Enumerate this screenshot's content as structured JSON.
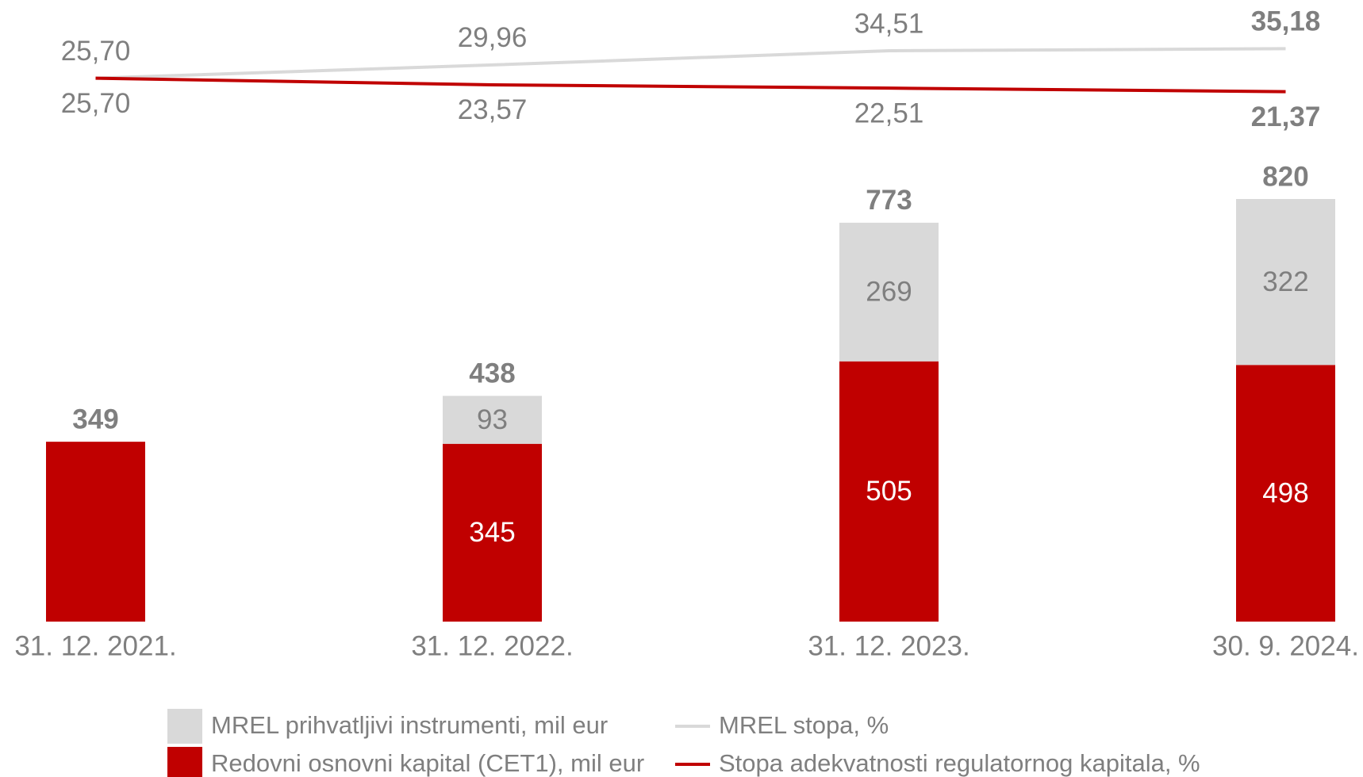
{
  "chart_data": {
    "type": "bar-line",
    "categories": [
      "31. 12. 2021.",
      "31. 12. 2022.",
      "31. 12. 2023.",
      "30. 9. 2024."
    ],
    "series": [
      {
        "name": "Redovni osnovni kapital (CET1), mil eur",
        "type": "bar",
        "color": "#c00000",
        "values": [
          349,
          345,
          505,
          498
        ]
      },
      {
        "name": "MREL prihvatljivi instrumenti, mil eur",
        "type": "bar",
        "color": "#d9d9d9",
        "values": [
          null,
          93,
          269,
          322
        ]
      },
      {
        "name": "MREL stopa, %",
        "type": "line",
        "axis": "y2",
        "color": "#d9d9d9",
        "values": [
          25.7,
          29.96,
          34.51,
          35.18
        ],
        "value_labels": [
          "25,70",
          "29,96",
          "34,51",
          "35,18"
        ]
      },
      {
        "name": "Stopa adekvatnosti regulatornog kapitala, %",
        "type": "line",
        "axis": "y2",
        "color": "#c00000",
        "values": [
          25.7,
          23.57,
          22.51,
          21.37
        ],
        "value_labels": [
          "25,70",
          "23,57",
          "22,51",
          "21,37"
        ]
      }
    ],
    "totals": [
      349,
      438,
      773,
      820
    ],
    "ylim": [
      0,
      1000
    ],
    "y2lim": [
      0,
      40
    ]
  }
}
